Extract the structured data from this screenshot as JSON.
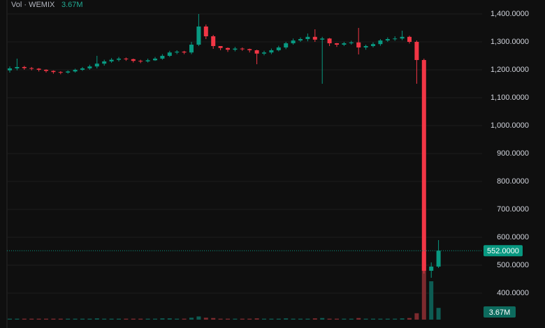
{
  "chart_data": {
    "type": "candlestick",
    "volume_title": "Vol · WEMIX",
    "volume_tag": "3.67M",
    "price_tag": {
      "value": 552,
      "label": "552.0000"
    },
    "up_color": "#089981",
    "down_color": "#f23645",
    "up_volume_color": "#0d5c53",
    "down_volume_color": "#7d2a2e",
    "open": [
      1198,
      1205,
      1210,
      1206,
      1204,
      1200,
      1196,
      1192,
      1190,
      1194,
      1200,
      1205,
      1212,
      1222,
      1230,
      1236,
      1240,
      1238,
      1232,
      1230,
      1234,
      1240,
      1250,
      1262,
      1265,
      1262,
      1290,
      1355,
      1320,
      1285,
      1278,
      1272,
      1276,
      1274,
      1270,
      1258,
      1262,
      1270,
      1280,
      1295,
      1305,
      1310,
      1318,
      1308,
      1312,
      1295,
      1290,
      1295,
      1298,
      1280,
      1285,
      1292,
      1305,
      1310,
      1312,
      1318,
      1300,
      1235,
      480,
      495
    ],
    "high": [
      1212,
      1240,
      1214,
      1210,
      1206,
      1202,
      1198,
      1195,
      1198,
      1204,
      1210,
      1218,
      1250,
      1236,
      1242,
      1246,
      1244,
      1240,
      1236,
      1240,
      1246,
      1256,
      1268,
      1270,
      1268,
      1300,
      1400,
      1362,
      1325,
      1284,
      1280,
      1282,
      1280,
      1276,
      1272,
      1268,
      1276,
      1286,
      1300,
      1312,
      1316,
      1330,
      1345,
      1318,
      1314,
      1296,
      1300,
      1304,
      1350,
      1290,
      1298,
      1310,
      1316,
      1320,
      1340,
      1322,
      1305,
      1240,
      510,
      590
    ],
    "low": [
      1190,
      1198,
      1200,
      1198,
      1194,
      1190,
      1186,
      1184,
      1186,
      1190,
      1196,
      1200,
      1205,
      1215,
      1225,
      1230,
      1232,
      1226,
      1224,
      1226,
      1232,
      1236,
      1246,
      1256,
      1256,
      1256,
      1285,
      1310,
      1275,
      1270,
      1264,
      1266,
      1268,
      1262,
      1220,
      1252,
      1256,
      1266,
      1274,
      1290,
      1300,
      1302,
      1300,
      1150,
      1285,
      1282,
      1285,
      1290,
      1255,
      1272,
      1280,
      1286,
      1300,
      1304,
      1306,
      1294,
      1150,
      470,
      455,
      490
    ],
    "close": [
      1205,
      1210,
      1206,
      1204,
      1200,
      1196,
      1192,
      1190,
      1194,
      1200,
      1205,
      1212,
      1222,
      1230,
      1236,
      1240,
      1238,
      1232,
      1230,
      1234,
      1240,
      1250,
      1262,
      1265,
      1262,
      1290,
      1355,
      1320,
      1285,
      1278,
      1272,
      1276,
      1274,
      1270,
      1258,
      1262,
      1270,
      1280,
      1295,
      1305,
      1310,
      1318,
      1308,
      1312,
      1295,
      1290,
      1295,
      1298,
      1280,
      1285,
      1292,
      1305,
      1310,
      1312,
      1318,
      1300,
      1235,
      480,
      495,
      552
    ],
    "volume": [
      0.3,
      0.3,
      0.3,
      0.3,
      0.3,
      0.3,
      0.3,
      0.3,
      0.3,
      0.3,
      0.3,
      0.3,
      0.4,
      0.3,
      0.3,
      0.3,
      0.3,
      0.3,
      0.3,
      0.3,
      0.3,
      0.4,
      0.4,
      0.3,
      0.3,
      0.6,
      1.0,
      0.6,
      0.5,
      0.3,
      0.3,
      0.3,
      0.3,
      0.3,
      0.4,
      0.3,
      0.3,
      0.3,
      0.4,
      0.3,
      0.3,
      0.3,
      0.4,
      0.5,
      0.3,
      0.3,
      0.3,
      0.3,
      0.5,
      0.3,
      0.3,
      0.3,
      0.3,
      0.3,
      0.4,
      0.5,
      2,
      21,
      12,
      3.67
    ],
    "ylim": [
      305,
      1450
    ],
    "y2lim": [
      0,
      100
    ],
    "yticks": [
      {
        "value": 1400,
        "label": "1,400.0000"
      },
      {
        "value": 1300,
        "label": "1,300.0000"
      },
      {
        "value": 1200,
        "label": "1,200.0000"
      },
      {
        "value": 1100,
        "label": "1,100.0000"
      },
      {
        "value": 1000,
        "label": "1,000.0000"
      },
      {
        "value": 900,
        "label": "900.0000"
      },
      {
        "value": 800,
        "label": "800.0000"
      },
      {
        "value": 700,
        "label": "700.0000"
      },
      {
        "value": 600,
        "label": "600.0000"
      },
      {
        "value": 500,
        "label": "500.0000"
      },
      {
        "value": 400,
        "label": "400.0000"
      }
    ],
    "grid": true
  }
}
